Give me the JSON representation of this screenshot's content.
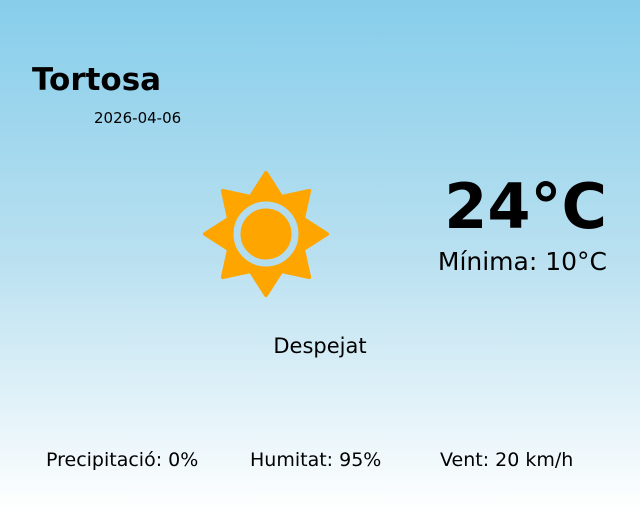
{
  "location": {
    "city": "Tortosa",
    "date": "2026-04-06"
  },
  "current": {
    "temperature": "24°C",
    "minimum": "Mínima: 10°C",
    "condition": "Despejat",
    "icon": "sun-icon"
  },
  "details": {
    "precipitation": "Precipitació: 0%",
    "humidity": "Humitat: 95%",
    "wind": "Vent: 20 km/h"
  },
  "colors": {
    "sun": "#ffa500",
    "sky_top": "#87ceeb",
    "sky_bottom": "#ffffff"
  }
}
